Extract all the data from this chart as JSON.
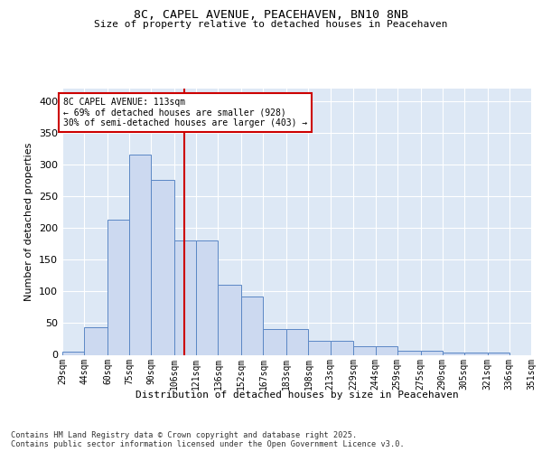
{
  "title_line1": "8C, CAPEL AVENUE, PEACEHAVEN, BN10 8NB",
  "title_line2": "Size of property relative to detached houses in Peacehaven",
  "xlabel": "Distribution of detached houses by size in Peacehaven",
  "ylabel": "Number of detached properties",
  "bin_edges": [
    29,
    44,
    60,
    75,
    90,
    106,
    121,
    136,
    152,
    167,
    183,
    198,
    213,
    229,
    244,
    259,
    275,
    290,
    305,
    321,
    336
  ],
  "bar_heights": [
    5,
    44,
    213,
    315,
    275,
    180,
    180,
    110,
    92,
    40,
    40,
    22,
    22,
    14,
    14,
    6,
    6,
    3,
    3,
    3
  ],
  "bar_color": "#ccd9f0",
  "bar_edge_color": "#5b87c5",
  "vline_x": 113,
  "vline_color": "#cc0000",
  "annotation_text": "8C CAPEL AVENUE: 113sqm\n← 69% of detached houses are smaller (928)\n30% of semi-detached houses are larger (403) →",
  "ylim": [
    0,
    420
  ],
  "yticks": [
    0,
    50,
    100,
    150,
    200,
    250,
    300,
    350,
    400
  ],
  "background_color": "#dde8f5",
  "grid_color": "#ffffff",
  "footer_text": "Contains HM Land Registry data © Crown copyright and database right 2025.\nContains public sector information licensed under the Open Government Licence v3.0."
}
